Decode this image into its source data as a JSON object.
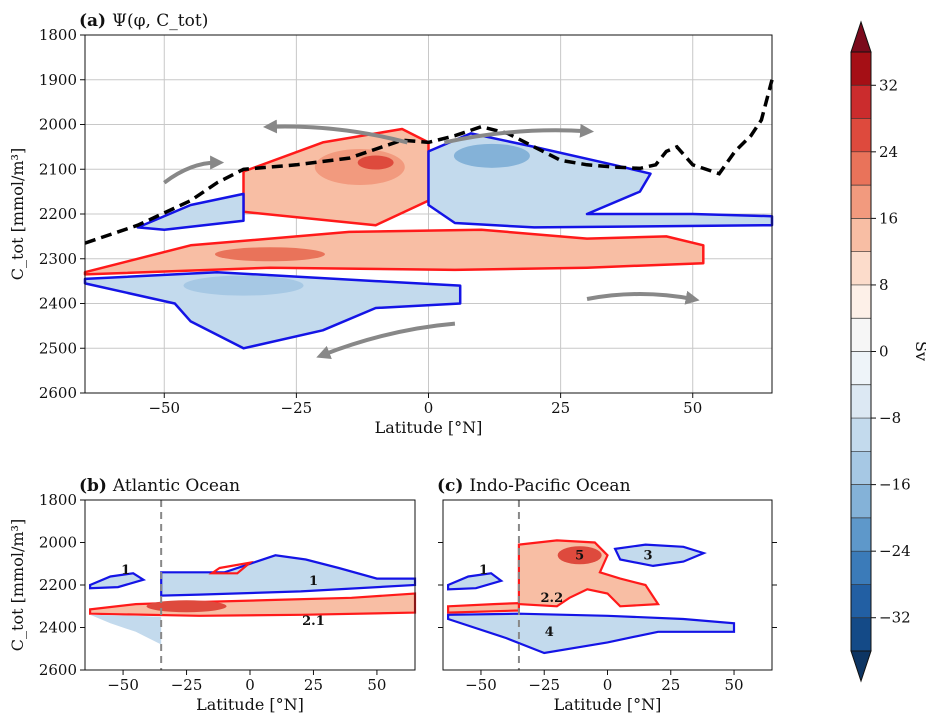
{
  "chart_data": [
    {
      "type": "contour",
      "panel_label": "(a)",
      "title": "Ψ(φ, C_tot)",
      "xlabel": "Latitude [°N]",
      "ylabel": "C_tot [mmol/m³]",
      "xlim": [
        -65,
        65
      ],
      "ylim": [
        2600,
        1800
      ],
      "y_inverted": true,
      "xticks": [
        -50,
        -25,
        0,
        25,
        50
      ],
      "xtick_labels": [
        "−50",
        "−25",
        "0",
        "25",
        "50"
      ],
      "yticks": [
        1800,
        1900,
        2000,
        2100,
        2200,
        2300,
        2400,
        2500,
        2600
      ],
      "grid": true,
      "dashed_line": [
        [
          -65,
          2265
        ],
        [
          -55,
          2225
        ],
        [
          -45,
          2170
        ],
        [
          -40,
          2130
        ],
        [
          -35,
          2100
        ],
        [
          -25,
          2090
        ],
        [
          -15,
          2075
        ],
        [
          -10,
          2055
        ],
        [
          -5,
          2035
        ],
        [
          0,
          2040
        ],
        [
          5,
          2025
        ],
        [
          10,
          2005
        ],
        [
          15,
          2020
        ],
        [
          20,
          2050
        ],
        [
          25,
          2080
        ],
        [
          30,
          2090
        ],
        [
          35,
          2095
        ],
        [
          40,
          2098
        ],
        [
          43,
          2090
        ],
        [
          45,
          2060
        ],
        [
          47,
          2050
        ],
        [
          50,
          2090
        ],
        [
          55,
          2110
        ],
        [
          58,
          2060
        ],
        [
          61,
          2025
        ],
        [
          63,
          1990
        ],
        [
          65,
          1900
        ]
      ],
      "contour_regions": [
        {
          "sign": "positive",
          "outline": "red",
          "points": [
            [
              -35,
              2105
            ],
            [
              -20,
              2040
            ],
            [
              -5,
              2010
            ],
            [
              0,
              2040
            ],
            [
              0,
              2170
            ],
            [
              -10,
              2225
            ],
            [
              -35,
              2195
            ]
          ]
        },
        {
          "sign": "positive",
          "outline": "red",
          "points": [
            [
              -65,
              2330
            ],
            [
              -45,
              2270
            ],
            [
              -15,
              2240
            ],
            [
              10,
              2235
            ],
            [
              30,
              2255
            ],
            [
              45,
              2250
            ],
            [
              52,
              2270
            ],
            [
              52,
              2310
            ],
            [
              30,
              2320
            ],
            [
              5,
              2325
            ],
            [
              -30,
              2320
            ],
            [
              -65,
              2335
            ]
          ]
        },
        {
          "sign": "negative",
          "outline": "blue",
          "points": [
            [
              -55,
              2230
            ],
            [
              -45,
              2180
            ],
            [
              -35,
              2155
            ],
            [
              -35,
              2215
            ],
            [
              -50,
              2235
            ]
          ]
        },
        {
          "sign": "negative",
          "outline": "blue",
          "points": [
            [
              0,
              2060
            ],
            [
              8,
              2020
            ],
            [
              20,
              2050
            ],
            [
              35,
              2090
            ],
            [
              42,
              2110
            ],
            [
              40,
              2150
            ],
            [
              30,
              2200
            ],
            [
              50,
              2200
            ],
            [
              65,
              2205
            ],
            [
              65,
              2225
            ],
            [
              20,
              2230
            ],
            [
              5,
              2220
            ],
            [
              0,
              2180
            ]
          ]
        },
        {
          "sign": "negative",
          "outline": "blue",
          "points": [
            [
              -65,
              2345
            ],
            [
              -40,
              2330
            ],
            [
              -10,
              2350
            ],
            [
              6,
              2360
            ],
            [
              6,
              2400
            ],
            [
              -10,
              2410
            ],
            [
              -20,
              2460
            ],
            [
              -35,
              2500
            ],
            [
              -45,
              2440
            ],
            [
              -48,
              2400
            ],
            [
              -65,
              2355
            ]
          ]
        }
      ],
      "arrows": [
        {
          "from": [
            -50,
            2130
          ],
          "to": [
            -40,
            2085
          ]
        },
        {
          "from": [
            -4,
            2040
          ],
          "to": [
            -30,
            2005
          ]
        },
        {
          "from": [
            3,
            2040
          ],
          "to": [
            30,
            2015
          ]
        },
        {
          "from": [
            30,
            2390
          ],
          "to": [
            50,
            2390
          ]
        },
        {
          "from": [
            5,
            2445
          ],
          "to": [
            -20,
            2515
          ]
        }
      ]
    },
    {
      "type": "contour",
      "panel_label": "(b)",
      "title": "Atlantic Ocean",
      "xlabel": "Latitude [°N]",
      "ylabel": "C_tot [mmol/m³]",
      "xlim": [
        -65,
        65
      ],
      "ylim": [
        2600,
        1800
      ],
      "y_inverted": true,
      "xticks": [
        -50,
        -25,
        0,
        25,
        50
      ],
      "xtick_labels": [
        "−50",
        "−25",
        "0",
        "25",
        "50"
      ],
      "yticks": [
        1800,
        2000,
        2200,
        2400,
        2600
      ],
      "vline": -35,
      "annotations": [
        {
          "text": "1",
          "x": -49,
          "y": 2130
        },
        {
          "text": "1",
          "x": 25,
          "y": 2180
        },
        {
          "text": "2.1",
          "x": 25,
          "y": 2370
        }
      ]
    },
    {
      "type": "contour",
      "panel_label": "(c)",
      "title": "Indo-Pacific Ocean",
      "xlabel": "Latitude [°N]",
      "xlim": [
        -65,
        65
      ],
      "ylim": [
        2600,
        1800
      ],
      "y_inverted": true,
      "xticks": [
        -50,
        -25,
        0,
        25,
        50
      ],
      "xtick_labels": [
        "−50",
        "−25",
        "0",
        "25",
        "50"
      ],
      "yticks": [
        2000,
        2200,
        2400
      ],
      "vline": -35,
      "annotations": [
        {
          "text": "1",
          "x": -49,
          "y": 2130
        },
        {
          "text": "5",
          "x": -11,
          "y": 2060
        },
        {
          "text": "3",
          "x": 16,
          "y": 2060
        },
        {
          "text": "2.2",
          "x": -22,
          "y": 2260
        },
        {
          "text": "4",
          "x": -23,
          "y": 2420
        }
      ]
    }
  ],
  "colorbar": {
    "label": "Sv",
    "ticks": [
      32,
      24,
      16,
      8,
      0,
      -8,
      -16,
      -24,
      -32
    ],
    "tick_labels": [
      "32",
      "24",
      "16",
      "8",
      "0",
      "−8",
      "−16",
      "−24",
      "−32"
    ],
    "levels": [
      36,
      32,
      28,
      24,
      20,
      16,
      12,
      8,
      4,
      0,
      -4,
      -8,
      -12,
      -16,
      -20,
      -24,
      -28,
      -32,
      -36
    ],
    "colors": [
      "#a50f15",
      "#cb2c2d",
      "#de4a3d",
      "#e9735a",
      "#f29a7e",
      "#f8bea4",
      "#fcdccb",
      "#fdf0e8",
      "#f6f6f6",
      "#eef4f9",
      "#dce8f3",
      "#c3daed",
      "#a6c8e4",
      "#84b2d8",
      "#5e98ca",
      "#3b7bb9",
      "#225fa3",
      "#144a87"
    ],
    "extend_top_color": "#7b0a1c",
    "extend_bottom_color": "#0d3563"
  }
}
